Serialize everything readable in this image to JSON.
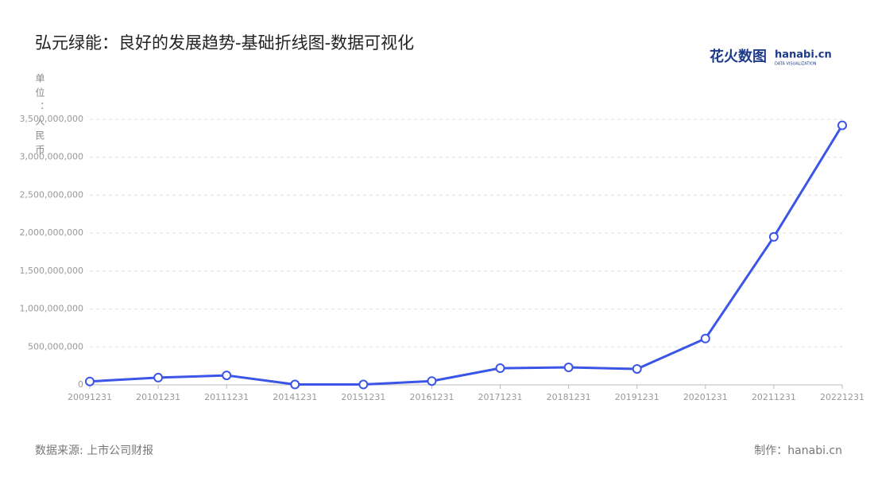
{
  "chart_data": {
    "type": "line",
    "title": "弘元绿能：良好的发展趋势-基础折线图-数据可视化",
    "y_label": "单位：人民币",
    "source": "数据来源: 上市公司财报",
    "credit": "制作：hanabi.cn",
    "logo": {
      "main": "花火数图",
      "brand": "hanabi.cn",
      "sub": "DATA VISUALIZATION"
    },
    "categories": [
      "20091231",
      "20101231",
      "20111231",
      "20141231",
      "20151231",
      "20161231",
      "20171231",
      "20181231",
      "20191231",
      "20201231",
      "20211231",
      "20221231"
    ],
    "series": [
      {
        "name": "弘元绿能",
        "color": "#3b55e6",
        "values": [
          45000000,
          95000000,
          125000000,
          5000000,
          5000000,
          50000000,
          220000000,
          230000000,
          210000000,
          610000000,
          1950000000,
          3420000000
        ]
      }
    ],
    "ylim": [
      0,
      3500000000
    ],
    "yticks": [
      0,
      {
        "value": 500000000,
        "label": "500,000,000"
      },
      {
        "value": 1000000000,
        "label": "1,000,000,000"
      },
      {
        "value": 1500000000,
        "label": "1,500,000,000"
      },
      {
        "value": 2000000000,
        "label": "2,000,000,000"
      },
      {
        "value": 2500000000,
        "label": "2,500,000,000"
      },
      {
        "value": 3000000000,
        "label": "3,000,000,000"
      },
      {
        "value": 3500000000,
        "label": "3,500,000,000"
      }
    ],
    "grid": true
  }
}
